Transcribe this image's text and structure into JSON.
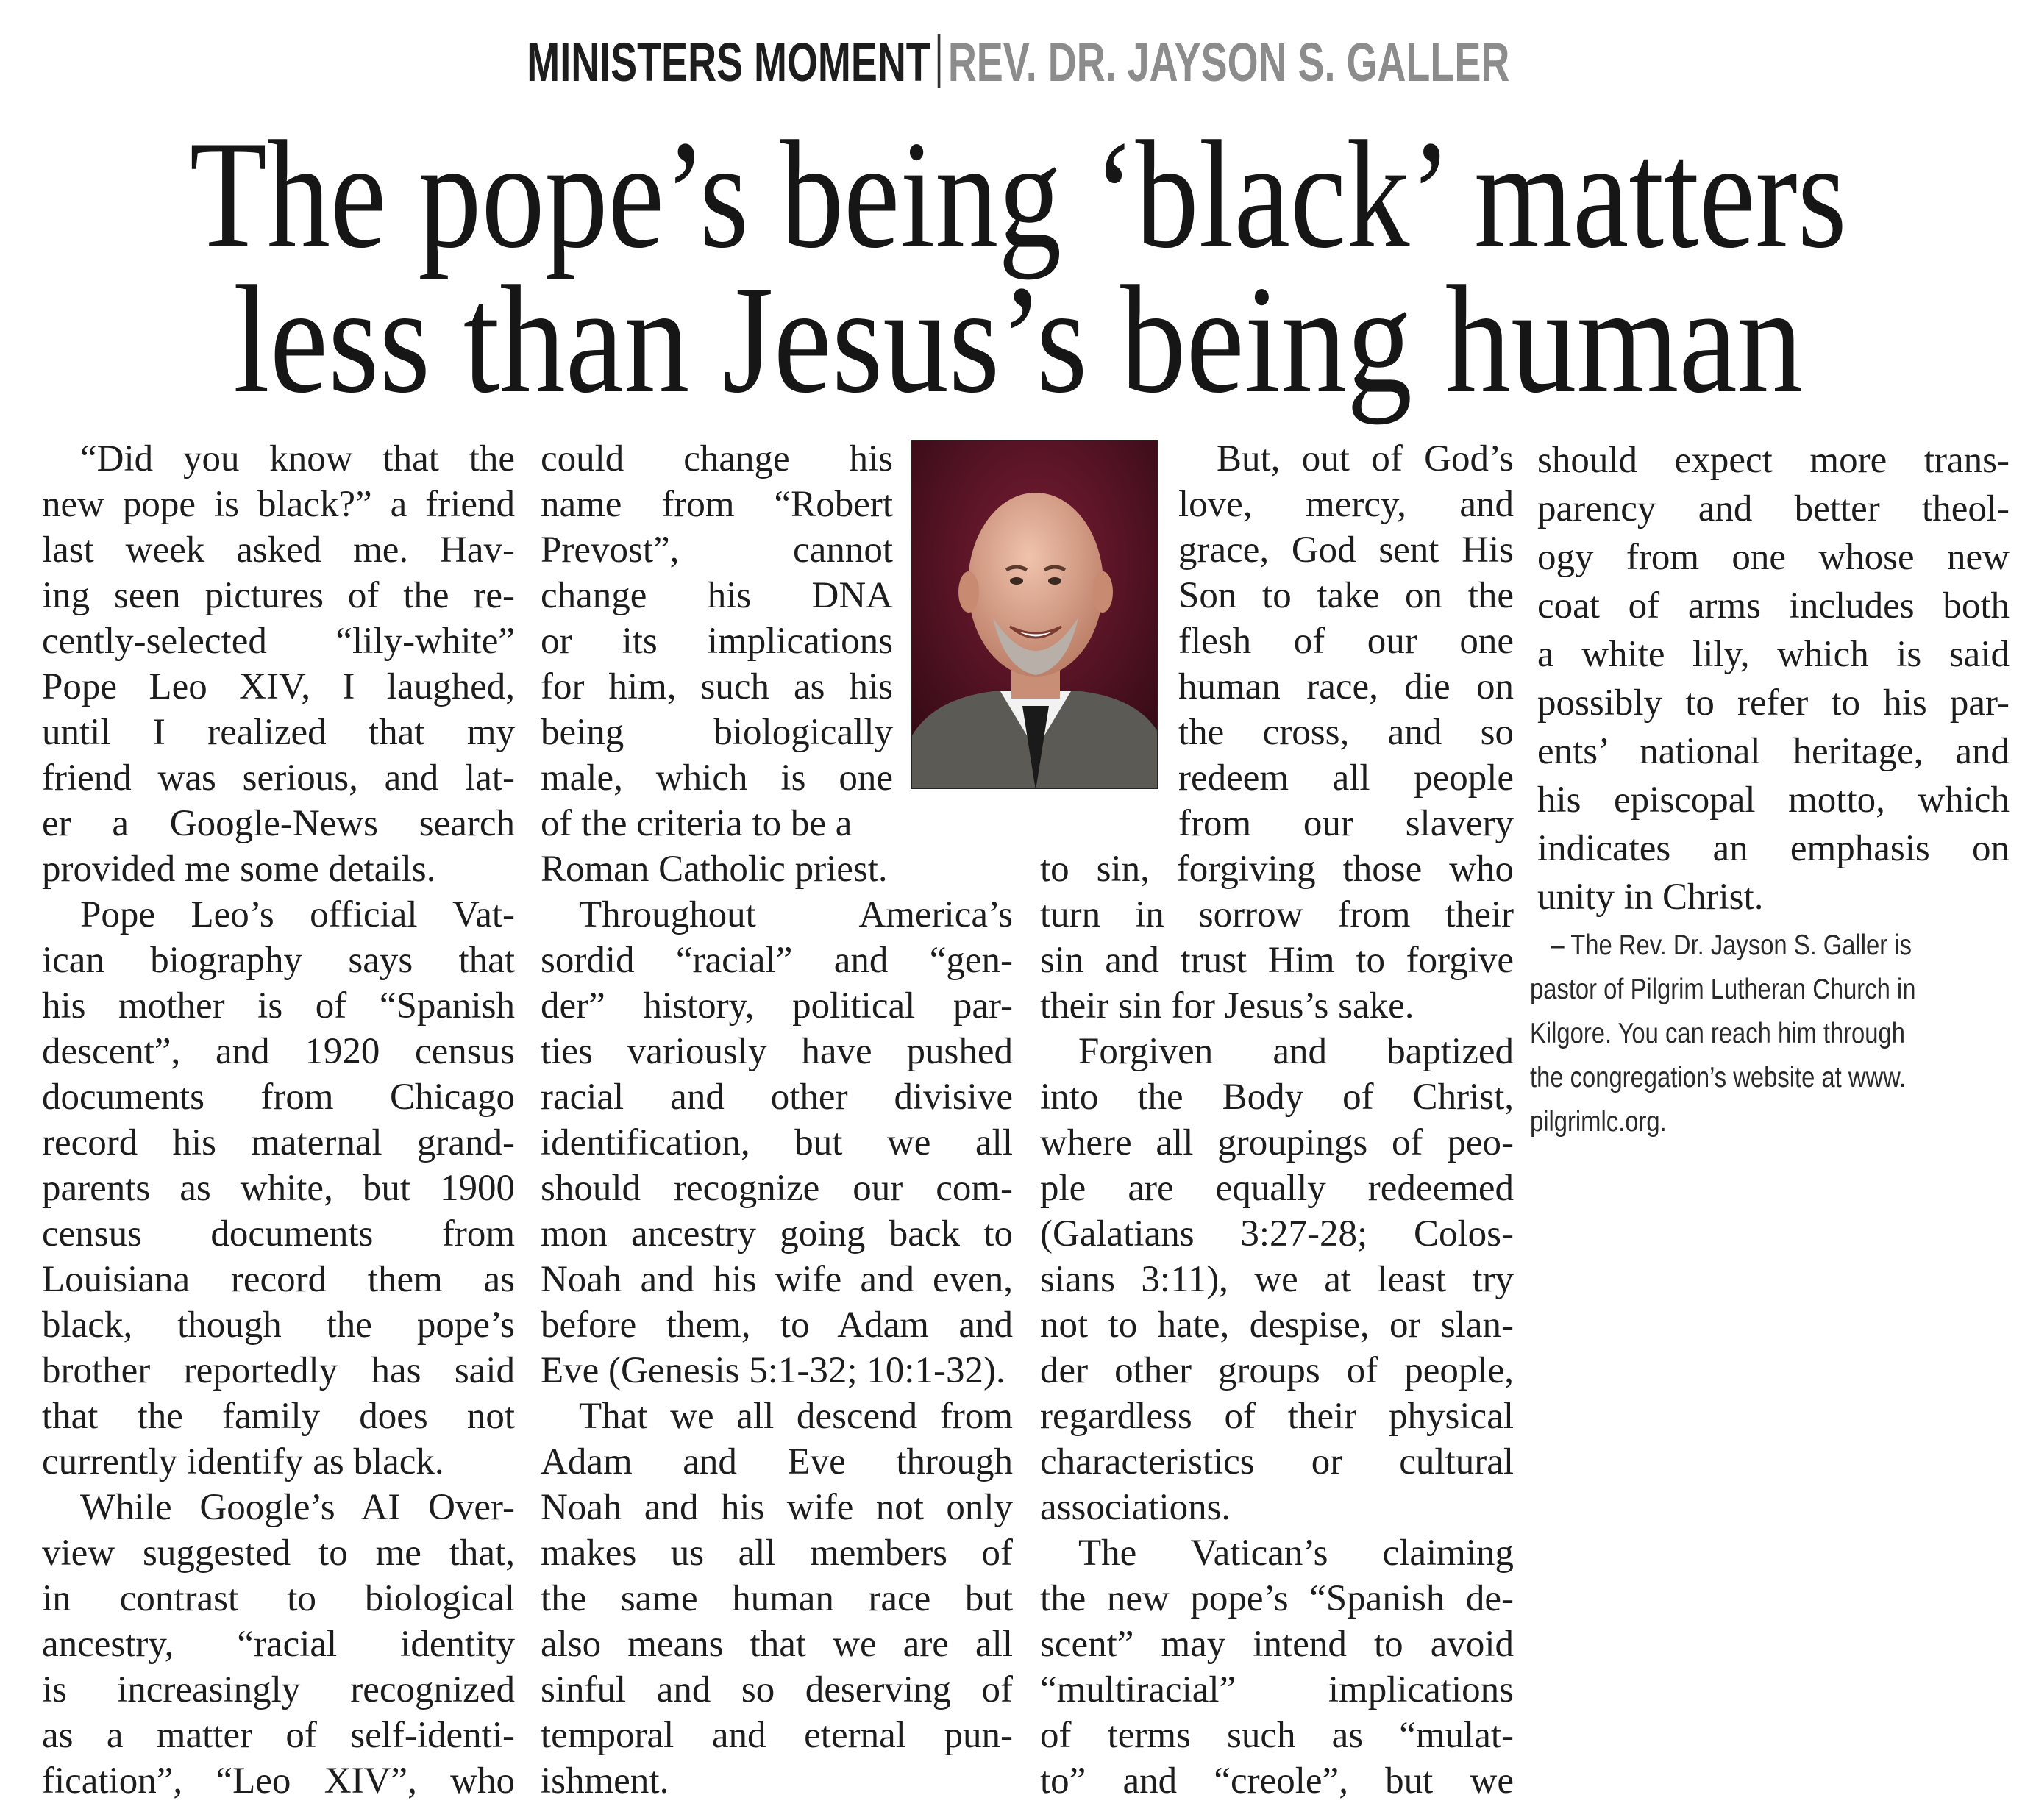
{
  "kicker": {
    "section": "MINISTERS MOMENT",
    "author": "REV. DR. JAYSON S. GALLER"
  },
  "headline": {
    "line1": "The pope’s being ‘black’ matters",
    "line2": "less than Jesus’s being human"
  },
  "photo": {
    "subject": "author-portrait"
  },
  "columns": [
    {
      "paragraphs": [
        [
          "“Did you know that the",
          "new pope is black?” a friend",
          "last week asked me. Hav-",
          "ing seen pictures of the re-",
          "cently-selected “lily-white”",
          "Pope Leo XIV, I laughed,",
          "until I realized that my",
          "friend was serious, and lat-",
          "er a Google-News search",
          "provided me some details."
        ],
        [
          "Pope Leo’s official Vat-",
          "ican biography says that",
          "his mother is of “Spanish",
          "descent”, and 1920 census",
          "documents from Chicago",
          "record his maternal grand-",
          "parents as white, but 1900",
          "census documents from",
          "Louisiana record them as",
          "black, though the pope’s",
          "brother reportedly has said",
          "that the family does not",
          "currently identify as black."
        ],
        [
          "While Google’s AI Over-",
          "view suggested to me that,",
          "in contrast to biological",
          "ancestry, “racial identity",
          "is increasingly recognized",
          "as a matter of self-identi-",
          "fication”, “Leo XIV”, who"
        ]
      ]
    },
    {
      "paragraphs": [
        [
          "could change his",
          "name from “Robert",
          "Prevost”, cannot",
          "change his DNA",
          "or its implications",
          "for him, such as his",
          "being biologically",
          "male, which is one",
          "of the criteria to be a",
          "Roman Catholic priest."
        ],
        [
          "Throughout America’s",
          "sordid “racial” and “gen-",
          "der” history, political par-",
          "ties variously have pushed",
          "racial and other divisive",
          "identification, but we all",
          "should recognize our com-",
          "mon ancestry going back to",
          "Noah and his wife and even,",
          "before them, to Adam and",
          "Eve (Genesis 5:1-32; 10:1-32)."
        ],
        [
          "That we all descend from",
          "Adam and Eve through",
          "Noah and his wife not only",
          "makes us all members of",
          "the same human race but",
          "also means that we are all",
          "sinful and so deserving of",
          "temporal and eternal pun-",
          "ishment."
        ]
      ]
    },
    {
      "paragraphs": [
        [
          "But, out of God’s",
          "love, mercy, and",
          "grace, God sent His",
          "Son to take on the",
          "flesh of our one",
          "human race, die on",
          "the cross, and so",
          "redeem all people",
          "from our slavery",
          "to sin, forgiving those who",
          "turn in sorrow from their",
          "sin and trust Him to forgive",
          "their sin for Jesus’s sake."
        ],
        [
          "Forgiven and baptized",
          "into the Body of Christ,",
          "where all groupings of peo-",
          "ple are equally redeemed",
          "(Galatians 3:27-28; Colos-",
          "sians 3:11), we at least try",
          "not to hate, despise, or slan-",
          "der other groups of people,",
          "regardless of their physical",
          "characteristics or cultural",
          "associations."
        ],
        [
          "The Vatican’s claiming",
          "the new pope’s “Spanish de-",
          "scent” may intend to avoid",
          "“multiracial” implications",
          "of terms such as “mulat-",
          "to” and “creole”, but we"
        ]
      ]
    },
    {
      "paragraphs": [
        [
          "should expect more trans-",
          "parency and better theol-",
          "ogy from one whose new",
          "coat of arms includes both",
          "a white lily, which is said",
          "possibly to refer to his par-",
          "ents’ national heritage, and",
          "his episcopal motto, which",
          "indicates an emphasis on",
          "unity in Christ."
        ]
      ]
    }
  ],
  "bio": {
    "lines": [
      "– The Rev. Dr. Jayson S. Galler is",
      "pastor of Pilgrim Lutheran Church in",
      "Kilgore. You can reach him through",
      "the congregation’s website at www.",
      "pilgrimlc.org."
    ]
  }
}
